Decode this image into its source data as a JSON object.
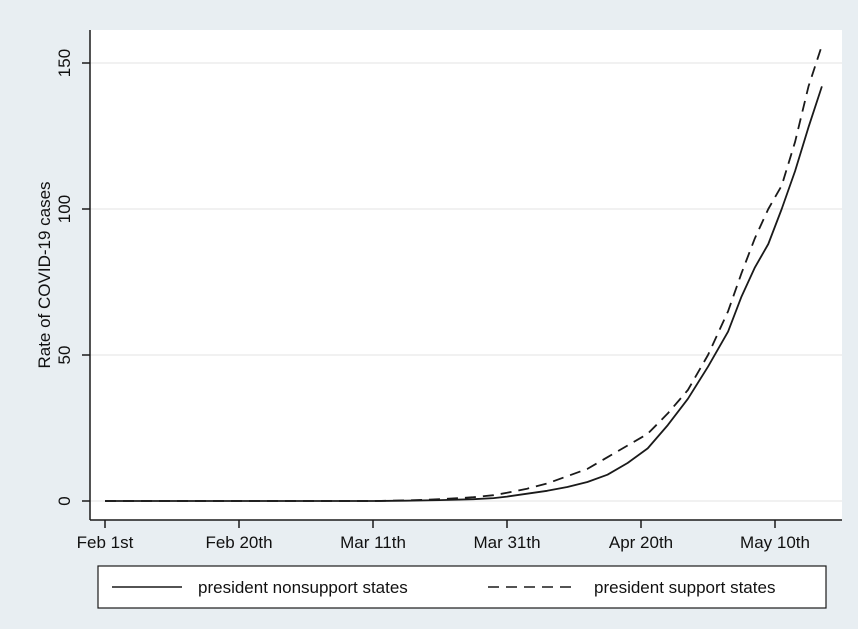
{
  "chart_data": {
    "type": "line",
    "title": "",
    "xlabel": "",
    "ylabel": "Rate of COVID-19 cases",
    "x_ticks": [
      "Feb 1st",
      "Feb 20th",
      "Mar 11th",
      "Mar 31th",
      "Apr 20th",
      "May 10th"
    ],
    "y_ticks": [
      "0",
      "50",
      "100",
      "150"
    ],
    "ylim": [
      0,
      160
    ],
    "xlim": [
      0,
      108
    ],
    "x_unit": "days since Feb 1st",
    "grid": true,
    "legend_position": "bottom",
    "x": [
      0,
      10,
      20,
      30,
      40,
      45,
      50,
      55,
      58,
      60,
      63,
      66,
      69,
      72,
      75,
      78,
      81,
      84,
      87,
      90,
      93,
      95,
      97,
      99,
      101,
      103,
      105,
      107
    ],
    "series": [
      {
        "name": "president nonsupport states",
        "style": "solid",
        "values": [
          0,
          0,
          0,
          0,
          0,
          0.1,
          0.3,
          0.6,
          1.0,
          1.5,
          2.5,
          3.5,
          4.8,
          6.5,
          9.0,
          13,
          18,
          26,
          35,
          46,
          58,
          70,
          80,
          88,
          100,
          113,
          128,
          142
        ]
      },
      {
        "name": "president support states",
        "style": "dashed",
        "values": [
          0,
          0,
          0,
          0,
          0,
          0.2,
          0.6,
          1.3,
          2.0,
          2.8,
          4.2,
          6.0,
          8.5,
          11,
          15,
          19,
          23,
          30,
          38,
          50,
          65,
          78,
          90,
          100,
          108,
          123,
          142,
          156
        ]
      }
    ],
    "colors": {
      "line": "#1a1a1a",
      "grid": "#e3e3e3",
      "plot_bg": "#ffffff",
      "outer_bg": "#e8eef2"
    }
  }
}
